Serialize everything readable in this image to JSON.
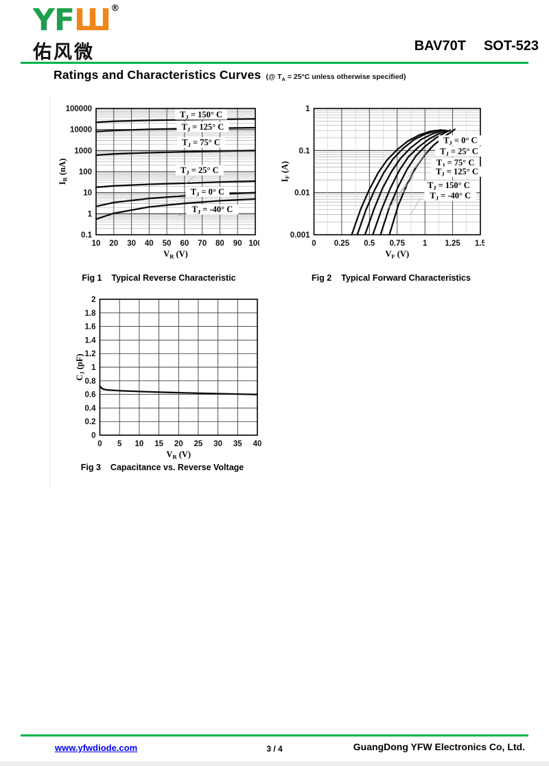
{
  "header": {
    "logo": {
      "yf": "YF",
      "w": "Ш",
      "reg": "®",
      "cjk": "佑风微"
    },
    "part_number": "BAV70T",
    "package": "SOT-523"
  },
  "title": {
    "main": "Ratings and Characteristics Curves",
    "cond_pre": "(@ T",
    "cond_sub": "A",
    "cond_post": " = 25°C unless otherwise specified)"
  },
  "footer": {
    "website": "www.yfwdiode.com",
    "page": "3 / 4",
    "company": "GuangDong YFW Electronics Co, Ltd."
  },
  "colors": {
    "rule_green": "#00b44a",
    "logo_green": "#1f9e4d",
    "logo_orange": "#f08519",
    "link_blue": "#0000ee"
  },
  "chart_data": [
    {
      "type": "line",
      "fig_label": "Fig 1",
      "title": "Typical Reverse Characteristic",
      "grid": true,
      "x_axis": {
        "label_pre": "V",
        "label_sub": "R",
        "label_post": " (V)",
        "scale": "linear",
        "min": 10,
        "max": 100,
        "ticks": [
          10,
          20,
          30,
          40,
          50,
          60,
          70,
          80,
          90,
          100
        ]
      },
      "y_axis": {
        "label_pre": "I",
        "label_sub": "R",
        "label_post": " (nA)",
        "scale": "log",
        "min": 0.1,
        "max": 100000,
        "ticks": [
          100000,
          10000,
          1000,
          100,
          10,
          1,
          0.1
        ]
      },
      "series": [
        {
          "name": "TJ = 150° C",
          "points": [
            [
              10,
              22000
            ],
            [
              20,
              24500
            ],
            [
              40,
              27000
            ],
            [
              60,
              29000
            ],
            [
              80,
              30500
            ],
            [
              100,
              32000
            ]
          ]
        },
        {
          "name": "TJ = 125° C",
          "points": [
            [
              10,
              8000
            ],
            [
              20,
              9000
            ],
            [
              40,
              10200
            ],
            [
              60,
              11000
            ],
            [
              80,
              11600
            ],
            [
              100,
              12200
            ]
          ]
        },
        {
          "name": "TJ = 75° C",
          "points": [
            [
              10,
              600
            ],
            [
              20,
              690
            ],
            [
              40,
              790
            ],
            [
              60,
              870
            ],
            [
              80,
              940
            ],
            [
              100,
              1000
            ]
          ]
        },
        {
          "name": "TJ = 25° C",
          "points": [
            [
              10,
              18
            ],
            [
              20,
              21
            ],
            [
              40,
              25
            ],
            [
              60,
              28
            ],
            [
              80,
              32
            ],
            [
              100,
              35
            ]
          ]
        },
        {
          "name": "TJ = 0° C",
          "points": [
            [
              10,
              2.2
            ],
            [
              20,
              3.4
            ],
            [
              40,
              5.3
            ],
            [
              60,
              7
            ],
            [
              80,
              8.6
            ],
            [
              100,
              10
            ]
          ]
        },
        {
          "name": "TJ = -40° C",
          "points": [
            [
              10,
              0.55
            ],
            [
              20,
              1.05
            ],
            [
              40,
              2.1
            ],
            [
              60,
              3.1
            ],
            [
              80,
              4.1
            ],
            [
              100,
              5
            ]
          ]
        }
      ],
      "curve_labels": [
        {
          "pre": "T",
          "sub": "J",
          "text": " = 150° C",
          "fx": 0.66,
          "fy": 0.048
        },
        {
          "pre": "T",
          "sub": "J",
          "text": " = 125° C",
          "fx": 0.67,
          "fy": 0.148
        },
        {
          "pre": "T",
          "sub": "J",
          "text": " = 75° C",
          "fx": 0.66,
          "fy": 0.27
        },
        {
          "pre": "T",
          "sub": "J",
          "text": " = 25° C",
          "fx": 0.65,
          "fy": 0.49,
          "leader": [
            0.56,
            0.6,
            0.63,
            0.525
          ]
        },
        {
          "pre": "T",
          "sub": "J",
          "text": " = 0° C",
          "fx": 0.7,
          "fy": 0.66,
          "leader": [
            0.52,
            0.72,
            0.61,
            0.675
          ]
        },
        {
          "pre": "T",
          "sub": "J",
          "text": " = -40° C",
          "fx": 0.73,
          "fy": 0.8,
          "leader": [
            0.52,
            0.845,
            0.63,
            0.83
          ]
        }
      ]
    },
    {
      "type": "line",
      "fig_label": "Fig 2",
      "title": "Typical Forward Characteristics",
      "grid": true,
      "x_axis": {
        "label_pre": "V",
        "label_sub": "F",
        "label_post": " (V)",
        "scale": "linear",
        "min": 0,
        "max": 1.5,
        "ticks": [
          0,
          0.25,
          0.5,
          0.75,
          1,
          1.25,
          1.5
        ],
        "minor_step": 0.125
      },
      "y_axis": {
        "label_pre": "I",
        "label_sub": "F",
        "label_post": " (A)",
        "scale": "log",
        "min": 0.001,
        "max": 1,
        "ticks": [
          1,
          0.1,
          0.01,
          0.001
        ]
      },
      "series": [
        {
          "name": "TJ = 150° C",
          "points": [
            [
              0.34,
              0.001
            ],
            [
              0.42,
              0.004
            ],
            [
              0.5,
              0.012
            ],
            [
              0.58,
              0.03
            ],
            [
              0.66,
              0.06
            ],
            [
              0.75,
              0.105
            ],
            [
              0.85,
              0.17
            ],
            [
              0.95,
              0.235
            ],
            [
              1.05,
              0.285
            ],
            [
              1.1,
              0.3
            ]
          ]
        },
        {
          "name": "TJ = 125° C",
          "points": [
            [
              0.39,
              0.001
            ],
            [
              0.47,
              0.004
            ],
            [
              0.55,
              0.012
            ],
            [
              0.63,
              0.03
            ],
            [
              0.71,
              0.062
            ],
            [
              0.8,
              0.11
            ],
            [
              0.9,
              0.18
            ],
            [
              1.0,
              0.245
            ],
            [
              1.1,
              0.295
            ],
            [
              1.15,
              0.31
            ]
          ]
        },
        {
          "name": "TJ = 75° C",
          "points": [
            [
              0.46,
              0.001
            ],
            [
              0.54,
              0.004
            ],
            [
              0.62,
              0.013
            ],
            [
              0.7,
              0.032
            ],
            [
              0.78,
              0.065
            ],
            [
              0.87,
              0.115
            ],
            [
              0.97,
              0.185
            ],
            [
              1.07,
              0.25
            ],
            [
              1.15,
              0.295
            ],
            [
              1.18,
              0.305
            ]
          ]
        },
        {
          "name": "TJ = 25° C",
          "points": [
            [
              0.53,
              0.001
            ],
            [
              0.61,
              0.004
            ],
            [
              0.69,
              0.013
            ],
            [
              0.77,
              0.034
            ],
            [
              0.85,
              0.07
            ],
            [
              0.94,
              0.12
            ],
            [
              1.04,
              0.19
            ],
            [
              1.13,
              0.255
            ],
            [
              1.2,
              0.3
            ]
          ]
        },
        {
          "name": "TJ = 0° C",
          "points": [
            [
              0.6,
              0.001
            ],
            [
              0.68,
              0.0045
            ],
            [
              0.76,
              0.014
            ],
            [
              0.84,
              0.036
            ],
            [
              0.92,
              0.075
            ],
            [
              1.0,
              0.125
            ],
            [
              1.1,
              0.2
            ],
            [
              1.18,
              0.265
            ],
            [
              1.23,
              0.305
            ]
          ]
        },
        {
          "name": "TJ = -40° C",
          "points": [
            [
              0.68,
              0.001
            ],
            [
              0.76,
              0.005
            ],
            [
              0.84,
              0.016
            ],
            [
              0.92,
              0.04
            ],
            [
              1.0,
              0.08
            ],
            [
              1.08,
              0.135
            ],
            [
              1.17,
              0.21
            ],
            [
              1.24,
              0.28
            ],
            [
              1.27,
              0.32
            ]
          ]
        }
      ],
      "curve_labels": [
        {
          "pre": "T",
          "sub": "J",
          "text": " = 0° C",
          "fx": 0.88,
          "fy": 0.254,
          "leader": [
            0.7,
            0.3,
            0.61,
            0.47
          ]
        },
        {
          "pre": "T",
          "sub": "J",
          "text": " = 25° C",
          "fx": 0.88,
          "fy": 0.34,
          "leader": [
            0.66,
            0.37,
            0.56,
            0.55
          ]
        },
        {
          "pre": "T",
          "sub": "J",
          "text": " = 75° C",
          "fx": 0.85,
          "fy": 0.43,
          "leader": [
            0.62,
            0.47,
            0.52,
            0.66
          ]
        },
        {
          "pre": "T",
          "sub": "J",
          "text": " = 125° C",
          "fx": 0.86,
          "fy": 0.5,
          "leader": [
            0.6,
            0.54,
            0.47,
            0.74
          ]
        },
        {
          "pre": "T",
          "sub": "J",
          "text": " = 150° C",
          "fx": 0.81,
          "fy": 0.61,
          "leader": [
            0.56,
            0.63,
            0.44,
            0.8
          ]
        },
        {
          "pre": "T",
          "sub": "J",
          "text": " = -40° C",
          "fx": 0.82,
          "fy": 0.69,
          "leader": [
            0.64,
            0.71,
            0.58,
            0.84
          ]
        }
      ]
    },
    {
      "type": "line",
      "fig_label": "Fig 3",
      "title": "Capacitance vs. Reverse Voltage",
      "grid": true,
      "x_axis": {
        "label_pre": "V",
        "label_sub": "R",
        "label_post": " (V)",
        "scale": "linear",
        "min": 0,
        "max": 40,
        "ticks": [
          0,
          5,
          10,
          15,
          20,
          25,
          30,
          35,
          40
        ]
      },
      "y_axis": {
        "label_pre": "C",
        "label_sub": "J",
        "label_post": " (pF)",
        "scale": "linear",
        "min": 0,
        "max": 2,
        "ticks": [
          2,
          1.8,
          1.6,
          1.4,
          1.2,
          1,
          0.8,
          0.6,
          0.4,
          0.2,
          0
        ]
      },
      "series": [
        {
          "name": "CJ",
          "points": [
            [
              0,
              0.72
            ],
            [
              0.5,
              0.69
            ],
            [
              1,
              0.675
            ],
            [
              2,
              0.665
            ],
            [
              4,
              0.658
            ],
            [
              6,
              0.652
            ],
            [
              8,
              0.647
            ],
            [
              10,
              0.642
            ],
            [
              14,
              0.635
            ],
            [
              18,
              0.628
            ],
            [
              22,
              0.622
            ],
            [
              26,
              0.616
            ],
            [
              30,
              0.611
            ],
            [
              34,
              0.606
            ],
            [
              38,
              0.601
            ],
            [
              40,
              0.598
            ]
          ]
        }
      ],
      "curve_labels": []
    }
  ]
}
